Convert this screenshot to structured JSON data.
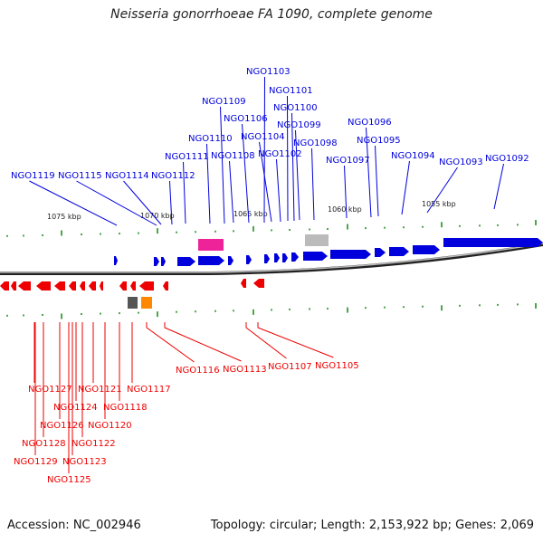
{
  "title": "Neisseria gonorrhoeae FA 1090, complete genome",
  "footer": {
    "accession": "Accession: NC_002946",
    "info": "Topology: circular; Length: 2,153,922 bp; Genes: 2,069"
  },
  "scale_labels": [
    "1075 kbp",
    "1070 kbp",
    "1065 kbp",
    "1060 kbp",
    "1055 kbp"
  ],
  "top_genes": [
    "NGO1119",
    "NGO1115",
    "NGO1114",
    "NGO1112",
    "NGO1111",
    "NGO1110",
    "NGO1109",
    "NGO1108",
    "NGO1106",
    "NGO1103",
    "NGO1104",
    "NGO1102",
    "NGO1101",
    "NGO1100",
    "NGO1099",
    "NGO1098",
    "NGO1097",
    "NGO1096",
    "NGO1095",
    "NGO1094",
    "NGO1093",
    "NGO1092"
  ],
  "bottom_genes": [
    "NGO1116",
    "NGO1113",
    "NGO1107",
    "NGO1105",
    "NGO1117",
    "NGO1127",
    "NGO1121",
    "NGO1118",
    "NGO1124",
    "NGO1126",
    "NGO1120",
    "NGO1128",
    "NGO1122",
    "NGO1129",
    "NGO1123",
    "NGO1125"
  ],
  "colors": {
    "forward": "#0000dd",
    "reverse": "#ee0000",
    "backbone": "#777777",
    "ticks": "#118811",
    "magenta_feature": "#ee2299",
    "gray_feature": "#bbbbbb",
    "dark_feature": "#555555",
    "orange_feature": "#ff8800"
  }
}
